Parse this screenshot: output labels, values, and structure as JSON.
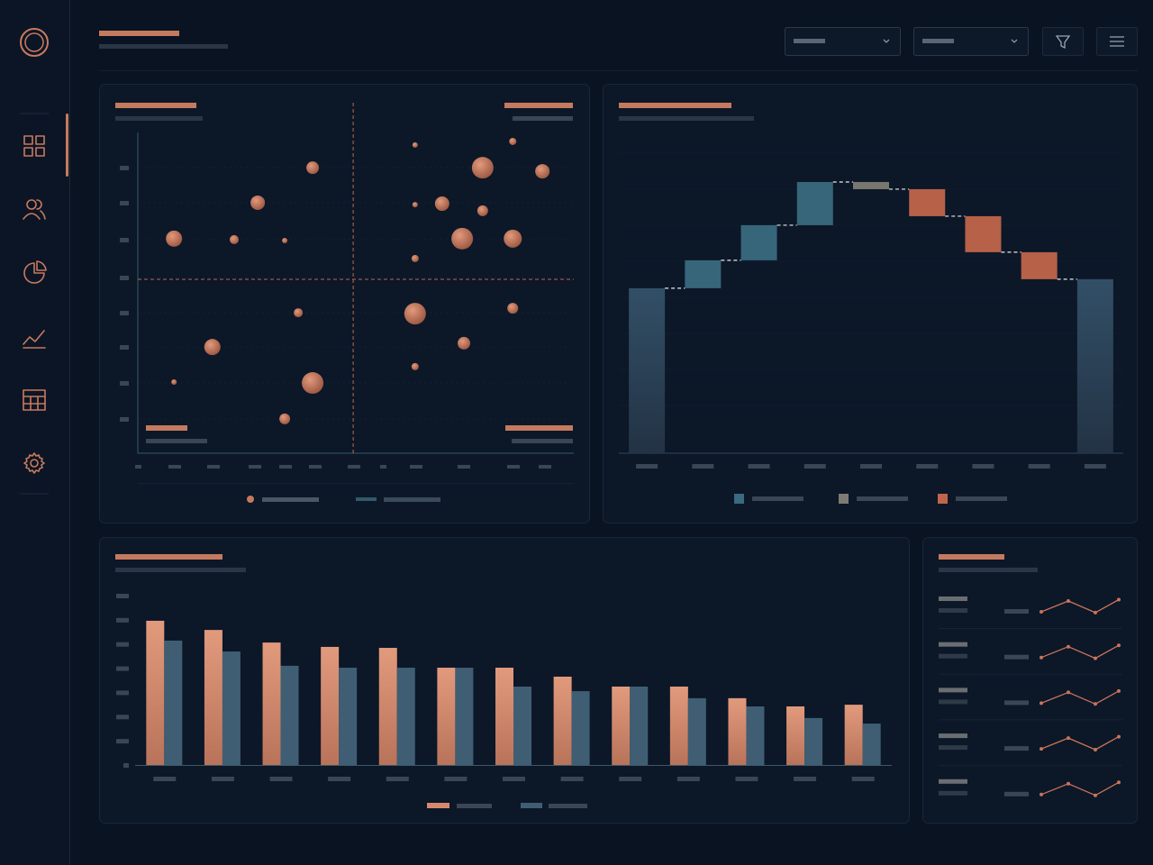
{
  "chart_data": [
    {
      "type": "scatter",
      "color": "#c47a5e",
      "x": [
        40.1,
        27.5,
        8.3,
        22.1,
        33.7,
        36.8,
        17.1,
        8.3,
        40.1,
        33.7,
        63.6,
        86.0,
        79.1,
        92.8,
        63.6,
        69.8,
        79.1,
        74.4,
        86.0,
        63.6,
        63.6,
        86.0,
        74.8,
        63.6
      ],
      "y": [
        89.0,
        78.1,
        66.9,
        66.6,
        66.3,
        43.8,
        33.1,
        22.2,
        21.9,
        10.7,
        96.1,
        97.2,
        89.0,
        87.9,
        77.5,
        77.8,
        75.6,
        66.9,
        66.9,
        60.7,
        43.5,
        45.2,
        34.3,
        27.0
      ],
      "sizes": [
        7,
        8,
        9,
        5,
        3,
        5,
        9,
        3,
        12,
        6,
        3,
        4,
        12,
        8,
        3,
        8,
        6,
        12,
        10,
        4,
        12,
        6,
        7,
        4
      ],
      "xlim": [
        0,
        100
      ],
      "ylim": [
        0,
        100
      ],
      "vline": 49.4,
      "hline": 54.2,
      "axis_color": "#2f5b6b"
    },
    {
      "type": "waterfall",
      "categories": [
        null,
        null,
        null,
        null,
        null,
        null,
        null,
        null,
        null
      ],
      "values": [
        55.0,
        9.3,
        11.7,
        14.4,
        -2.4,
        -9.0,
        -12.0,
        -9.0,
        58.0
      ],
      "kinds": [
        "total",
        "step",
        "step",
        "step",
        "step",
        "step",
        "step",
        "step",
        "total"
      ],
      "colors": {
        "total": "#2f475c",
        "increase": "#3a6a80",
        "neutral": "#7d7c74",
        "decrease": "#c0654a"
      },
      "ylim": [
        0,
        100
      ]
    },
    {
      "type": "bar",
      "categories": [
        null,
        null,
        null,
        null,
        null,
        null,
        null,
        null,
        null,
        null,
        null,
        null,
        null
      ],
      "series": [
        {
          "color": "#d48b6d",
          "values": [
            59.6,
            55.8,
            50.6,
            48.8,
            48.4,
            40.2,
            40.2,
            36.5,
            32.4,
            32.4,
            27.6,
            24.2,
            24.9
          ]
        },
        {
          "color": "#3f5e73",
          "values": [
            51.4,
            46.9,
            41.0,
            40.2,
            40.2,
            40.2,
            32.4,
            30.5,
            32.4,
            27.6,
            24.2,
            19.4,
            17.1
          ]
        }
      ],
      "ylim": [
        0,
        70
      ]
    },
    {
      "type": "sparkline",
      "color": "#c8745a",
      "ylim": [
        0,
        6
      ],
      "series": [
        {
          "values": [
            1,
            5,
            0.7,
            5.5
          ]
        },
        {
          "values": [
            1,
            5,
            0.7,
            5.5
          ]
        },
        {
          "values": [
            1,
            5,
            0.7,
            5.5
          ]
        },
        {
          "values": [
            1,
            5,
            0.7,
            5.5
          ]
        },
        {
          "values": [
            1,
            5,
            0.7,
            5.5
          ]
        }
      ]
    }
  ]
}
